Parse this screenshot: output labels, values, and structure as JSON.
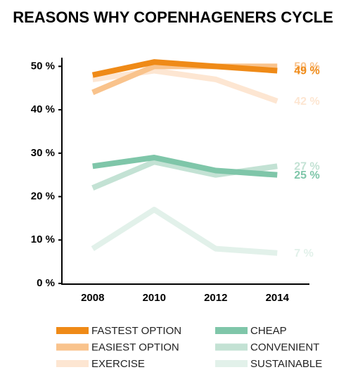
{
  "chart_data": {
    "type": "line",
    "title": "REASONS WHY COPENHAGENERS CYCLE",
    "categories": [
      "2008",
      "2010",
      "2012",
      "2014"
    ],
    "series": [
      {
        "name": "FASTEST OPTION",
        "color": "#ef8a17",
        "values": [
          48,
          51,
          50,
          49
        ],
        "value_labels": [
          null,
          null,
          null,
          "49 %"
        ]
      },
      {
        "name": "EASIEST OPTION",
        "color": "#f9c38c",
        "values": [
          44,
          50,
          50,
          50
        ],
        "value_labels": [
          null,
          null,
          null,
          "50 %"
        ]
      },
      {
        "name": "EXERCISE",
        "color": "#fde6d2",
        "values": [
          47,
          49,
          47,
          42
        ],
        "value_labels": [
          null,
          null,
          null,
          "42 %"
        ]
      },
      {
        "name": "CHEAP",
        "color": "#7fc6a9",
        "values": [
          27,
          29,
          26,
          25
        ],
        "value_labels": [
          null,
          null,
          null,
          "25 %"
        ]
      },
      {
        "name": "CONVENIENT",
        "color": "#c3e2d4",
        "values": [
          22,
          28,
          25,
          27
        ],
        "value_labels": [
          null,
          null,
          null,
          "27 %"
        ]
      },
      {
        "name": "SUSTAINABLE",
        "color": "#e2f1ea",
        "values": [
          8,
          17,
          8,
          7
        ],
        "value_labels": [
          null,
          null,
          null,
          "7 %"
        ]
      }
    ],
    "ylim": [
      0,
      52
    ],
    "yticks": [
      {
        "value": 0,
        "label": "0 %"
      },
      {
        "value": 10,
        "label": "10 %"
      },
      {
        "value": 20,
        "label": "20 %"
      },
      {
        "value": 30,
        "label": "30 %"
      },
      {
        "value": 40,
        "label": "40 %"
      },
      {
        "value": 50,
        "label": "50 %"
      }
    ],
    "grid": false
  }
}
